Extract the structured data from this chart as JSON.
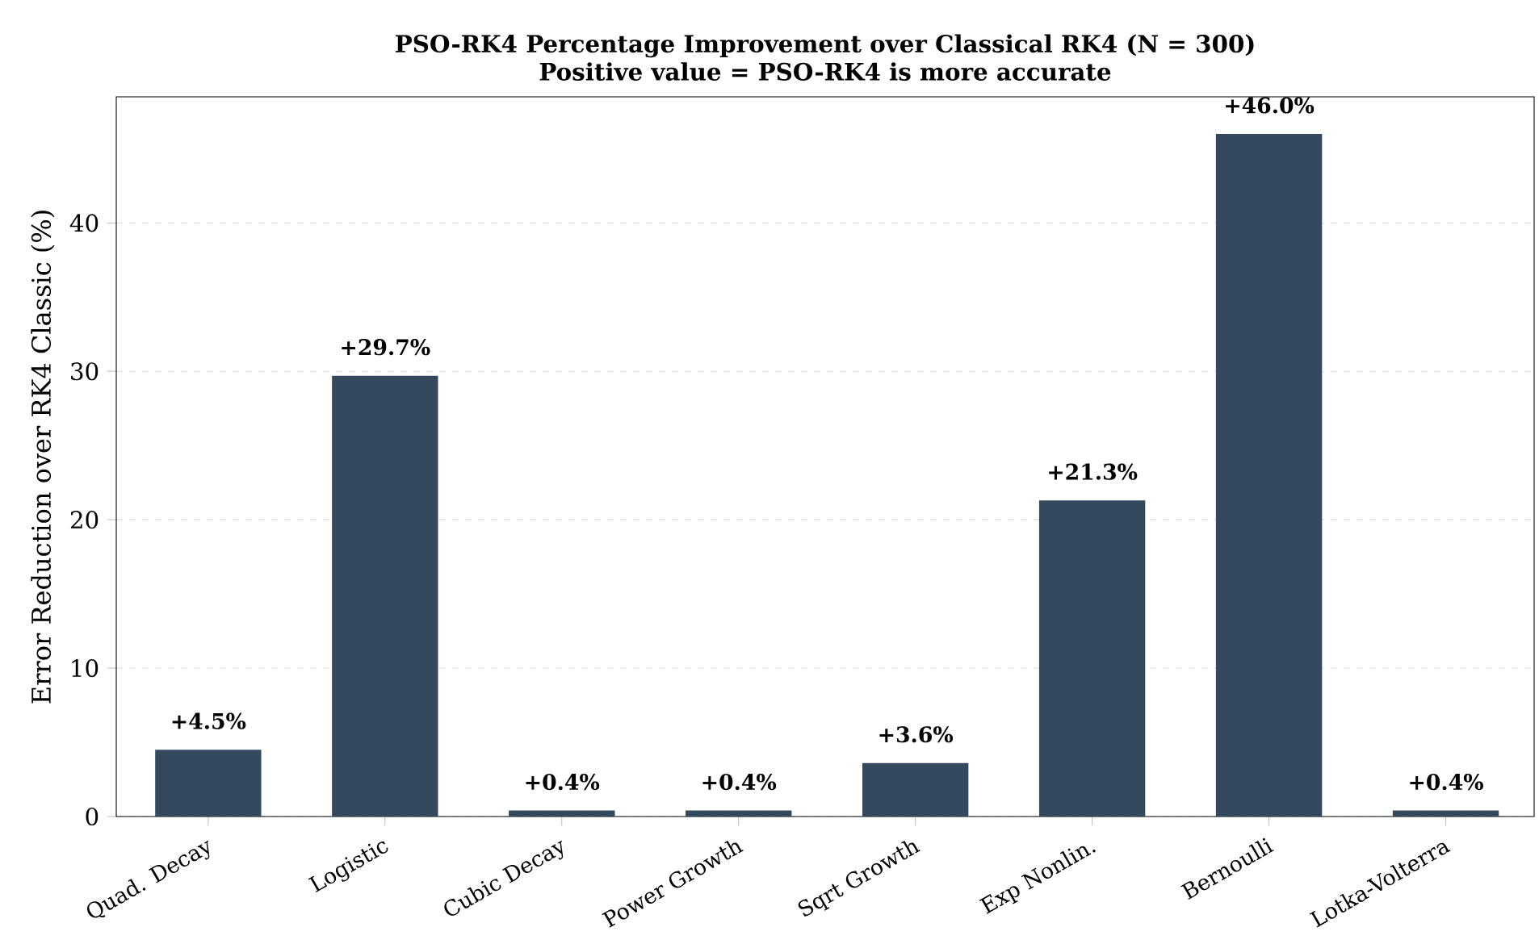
{
  "chart_data": {
    "type": "bar",
    "title": "PSO-RK4 Percentage Improvement over Classical RK4  (N = 300)",
    "subtitle": "Positive value = PSO-RK4 is more accurate",
    "ylabel": "Error Reduction over RK4 Classic (%)",
    "categories": [
      "Quad. Decay",
      "Logistic",
      "Cubic Decay",
      "Power Growth",
      "Sqrt Growth",
      "Exp Nonlin.",
      "Bernoulli",
      "Lotka-Volterra"
    ],
    "values": [
      4.5,
      29.7,
      0.4,
      0.4,
      3.6,
      21.3,
      46.0,
      0.4
    ],
    "value_labels": [
      "+4.5%",
      "+29.7%",
      "+0.4%",
      "+0.4%",
      "+3.6%",
      "+21.3%",
      "+46.0%",
      "+0.4%"
    ],
    "color": "#34495e",
    "ylim": [
      0,
      48.5
    ],
    "yticks": [
      0,
      10,
      20,
      30,
      40
    ],
    "grid": "y"
  }
}
